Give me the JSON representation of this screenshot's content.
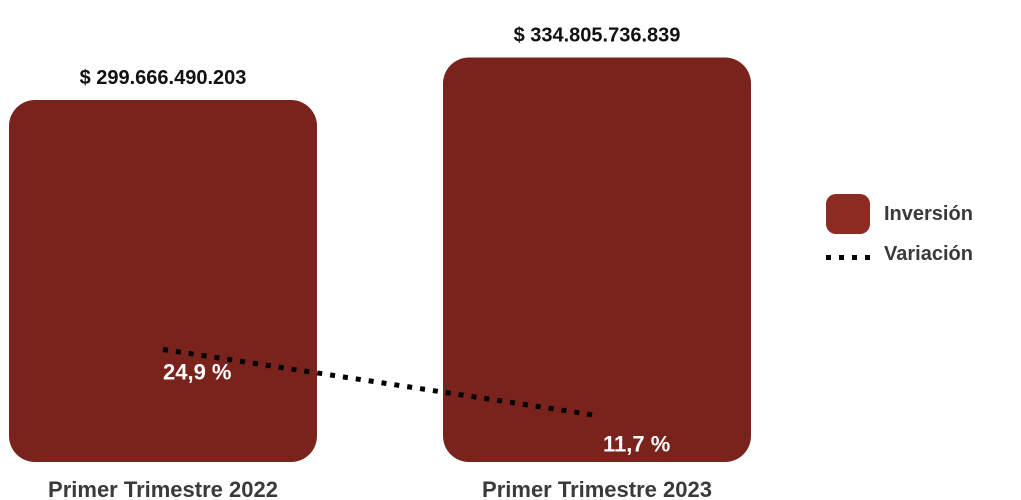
{
  "chart_data": {
    "type": "bar",
    "categories": [
      "Primer Trimestre 2022",
      "Primer Trimestre 2023"
    ],
    "series": [
      {
        "name": "Inversión",
        "values": [
          299666490203,
          334805736839
        ],
        "value_labels": [
          "$ 299.666.490.203",
          "$ 334.805.736.839"
        ],
        "color": "#7a231d"
      },
      {
        "name": "Variación",
        "type": "line",
        "style": "dotted",
        "values": [
          24.9,
          11.7
        ],
        "value_labels": [
          "24,9 %",
          "11,7 %"
        ],
        "color": "#000000"
      }
    ],
    "legend": "right"
  },
  "legend": {
    "items": [
      {
        "label": "Inversión",
        "icon": "bar-swatch"
      },
      {
        "label": "Variación",
        "icon": "dotted-line"
      }
    ]
  }
}
